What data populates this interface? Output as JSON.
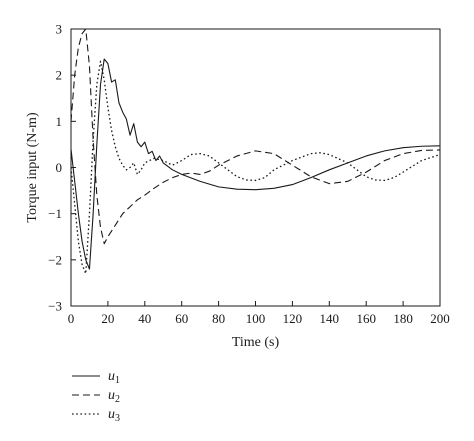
{
  "chart_data": {
    "type": "line",
    "xlabel": "Time (s)",
    "ylabel": "Torque input (N-m)",
    "xlim": [
      0,
      200
    ],
    "ylim": [
      -3,
      3
    ],
    "xticks": [
      0,
      20,
      40,
      60,
      80,
      100,
      120,
      140,
      160,
      180,
      200
    ],
    "yticks": [
      -3,
      -2,
      -1,
      0,
      1,
      2,
      3
    ],
    "grid": false,
    "legend_position": "bottom-left",
    "series": [
      {
        "name": "u",
        "sub": "1",
        "style": "solid",
        "color": "#1a1a1a",
        "points": [
          [
            0,
            0.4
          ],
          [
            2,
            -0.3
          ],
          [
            4,
            -1.0
          ],
          [
            6,
            -1.6
          ],
          [
            8,
            -2.0
          ],
          [
            10,
            -2.2
          ],
          [
            12,
            -1.0
          ],
          [
            14,
            0.5
          ],
          [
            16,
            1.8
          ],
          [
            18,
            2.35
          ],
          [
            20,
            2.25
          ],
          [
            22,
            1.85
          ],
          [
            24,
            1.9
          ],
          [
            26,
            1.4
          ],
          [
            28,
            1.2
          ],
          [
            30,
            1.05
          ],
          [
            32,
            0.7
          ],
          [
            34,
            0.95
          ],
          [
            36,
            0.55
          ],
          [
            38,
            0.45
          ],
          [
            40,
            0.55
          ],
          [
            42,
            0.3
          ],
          [
            44,
            0.35
          ],
          [
            46,
            0.15
          ],
          [
            48,
            0.25
          ],
          [
            50,
            0.1
          ],
          [
            55,
            -0.05
          ],
          [
            60,
            -0.15
          ],
          [
            70,
            -0.3
          ],
          [
            80,
            -0.42
          ],
          [
            90,
            -0.47
          ],
          [
            100,
            -0.48
          ],
          [
            110,
            -0.45
          ],
          [
            120,
            -0.37
          ],
          [
            130,
            -0.22
          ],
          [
            140,
            -0.05
          ],
          [
            150,
            0.1
          ],
          [
            160,
            0.25
          ],
          [
            170,
            0.36
          ],
          [
            180,
            0.43
          ],
          [
            190,
            0.46
          ],
          [
            200,
            0.47
          ]
        ]
      },
      {
        "name": "u",
        "sub": "2",
        "style": "dashed",
        "color": "#1a1a1a",
        "points": [
          [
            0,
            1.0
          ],
          [
            2,
            2.0
          ],
          [
            4,
            2.6
          ],
          [
            6,
            2.9
          ],
          [
            8,
            3.0
          ],
          [
            10,
            2.2
          ],
          [
            12,
            0.6
          ],
          [
            14,
            -0.6
          ],
          [
            16,
            -1.3
          ],
          [
            18,
            -1.65
          ],
          [
            20,
            -1.5
          ],
          [
            24,
            -1.25
          ],
          [
            28,
            -1.0
          ],
          [
            32,
            -0.85
          ],
          [
            36,
            -0.7
          ],
          [
            40,
            -0.6
          ],
          [
            45,
            -0.45
          ],
          [
            50,
            -0.32
          ],
          [
            55,
            -0.22
          ],
          [
            60,
            -0.15
          ],
          [
            65,
            -0.12
          ],
          [
            70,
            -0.15
          ],
          [
            75,
            -0.08
          ],
          [
            80,
            0.05
          ],
          [
            90,
            0.25
          ],
          [
            100,
            0.36
          ],
          [
            110,
            0.3
          ],
          [
            120,
            0.05
          ],
          [
            130,
            -0.2
          ],
          [
            140,
            -0.35
          ],
          [
            150,
            -0.3
          ],
          [
            160,
            -0.1
          ],
          [
            170,
            0.15
          ],
          [
            180,
            0.3
          ],
          [
            190,
            0.37
          ],
          [
            200,
            0.38
          ]
        ]
      },
      {
        "name": "u",
        "sub": "3",
        "style": "dotted",
        "color": "#1a1a1a",
        "points": [
          [
            0,
            0.0
          ],
          [
            2,
            -0.8
          ],
          [
            4,
            -1.6
          ],
          [
            6,
            -2.1
          ],
          [
            8,
            -2.3
          ],
          [
            10,
            -1.0
          ],
          [
            12,
            0.6
          ],
          [
            14,
            1.8
          ],
          [
            16,
            2.3
          ],
          [
            18,
            1.9
          ],
          [
            20,
            1.3
          ],
          [
            22,
            0.8
          ],
          [
            24,
            0.45
          ],
          [
            26,
            0.2
          ],
          [
            28,
            0.05
          ],
          [
            30,
            -0.05
          ],
          [
            32,
            0.0
          ],
          [
            34,
            0.1
          ],
          [
            36,
            -0.15
          ],
          [
            38,
            -0.05
          ],
          [
            40,
            0.1
          ],
          [
            45,
            0.2
          ],
          [
            50,
            0.15
          ],
          [
            55,
            0.05
          ],
          [
            60,
            0.15
          ],
          [
            65,
            0.28
          ],
          [
            70,
            0.3
          ],
          [
            75,
            0.25
          ],
          [
            80,
            0.1
          ],
          [
            85,
            -0.05
          ],
          [
            90,
            -0.2
          ],
          [
            95,
            -0.27
          ],
          [
            100,
            -0.28
          ],
          [
            105,
            -0.22
          ],
          [
            110,
            -0.05
          ],
          [
            120,
            0.15
          ],
          [
            130,
            0.3
          ],
          [
            135,
            0.32
          ],
          [
            140,
            0.28
          ],
          [
            150,
            0.1
          ],
          [
            155,
            -0.05
          ],
          [
            160,
            -0.2
          ],
          [
            165,
            -0.27
          ],
          [
            170,
            -0.28
          ],
          [
            175,
            -0.22
          ],
          [
            180,
            -0.1
          ],
          [
            190,
            0.15
          ],
          [
            200,
            0.28
          ]
        ]
      }
    ]
  }
}
